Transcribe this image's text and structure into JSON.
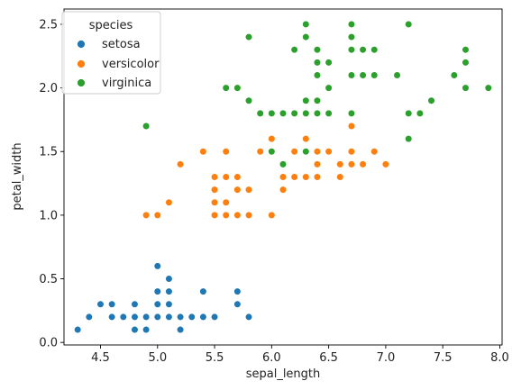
{
  "chart_data": {
    "type": "scatter",
    "title": "",
    "xlabel": "sepal_length",
    "ylabel": "petal_width",
    "xlim": [
      4.18,
      8.02
    ],
    "ylim": [
      -0.02,
      2.62
    ],
    "xticks": [
      4.5,
      5.0,
      5.5,
      6.0,
      6.5,
      7.0,
      7.5,
      8.0
    ],
    "xtick_labels": [
      "4.5",
      "5.0",
      "5.5",
      "6.0",
      "6.5",
      "7.0",
      "7.5",
      "8.0"
    ],
    "yticks": [
      0.0,
      0.5,
      1.0,
      1.5,
      2.0,
      2.5
    ],
    "ytick_labels": [
      "0.0",
      "0.5",
      "1.0",
      "1.5",
      "2.0",
      "2.5"
    ],
    "grid": false,
    "legend": {
      "title": "species",
      "placement": "upper-left"
    },
    "series": [
      {
        "name": "setosa",
        "color": "#1f77b4",
        "points": [
          [
            4.3,
            0.1
          ],
          [
            4.4,
            0.2
          ],
          [
            4.5,
            0.3
          ],
          [
            4.6,
            0.2
          ],
          [
            4.6,
            0.3
          ],
          [
            4.7,
            0.2
          ],
          [
            4.8,
            0.1
          ],
          [
            4.8,
            0.2
          ],
          [
            4.8,
            0.3
          ],
          [
            4.9,
            0.1
          ],
          [
            4.9,
            0.2
          ],
          [
            5.0,
            0.2
          ],
          [
            5.0,
            0.3
          ],
          [
            5.0,
            0.4
          ],
          [
            5.0,
            0.6
          ],
          [
            5.1,
            0.2
          ],
          [
            5.1,
            0.3
          ],
          [
            5.1,
            0.4
          ],
          [
            5.1,
            0.5
          ],
          [
            5.2,
            0.1
          ],
          [
            5.2,
            0.2
          ],
          [
            5.3,
            0.2
          ],
          [
            5.4,
            0.2
          ],
          [
            5.4,
            0.4
          ],
          [
            5.5,
            0.2
          ],
          [
            5.7,
            0.3
          ],
          [
            5.7,
            0.4
          ],
          [
            5.8,
            0.2
          ]
        ]
      },
      {
        "name": "versicolor",
        "color": "#ff7f0e",
        "points": [
          [
            4.9,
            1.0
          ],
          [
            5.0,
            1.0
          ],
          [
            5.1,
            1.1
          ],
          [
            5.2,
            1.4
          ],
          [
            5.4,
            1.5
          ],
          [
            5.5,
            1.0
          ],
          [
            5.5,
            1.1
          ],
          [
            5.5,
            1.2
          ],
          [
            5.5,
            1.3
          ],
          [
            5.6,
            1.0
          ],
          [
            5.6,
            1.1
          ],
          [
            5.6,
            1.3
          ],
          [
            5.6,
            1.5
          ],
          [
            5.7,
            1.0
          ],
          [
            5.7,
            1.2
          ],
          [
            5.7,
            1.3
          ],
          [
            5.8,
            1.0
          ],
          [
            5.8,
            1.2
          ],
          [
            5.9,
            1.5
          ],
          [
            6.0,
            1.0
          ],
          [
            6.0,
            1.5
          ],
          [
            6.0,
            1.6
          ],
          [
            6.1,
            1.2
          ],
          [
            6.1,
            1.3
          ],
          [
            6.1,
            1.4
          ],
          [
            6.2,
            1.3
          ],
          [
            6.2,
            1.5
          ],
          [
            6.3,
            1.3
          ],
          [
            6.3,
            1.5
          ],
          [
            6.3,
            1.6
          ],
          [
            6.4,
            1.3
          ],
          [
            6.4,
            1.4
          ],
          [
            6.4,
            1.5
          ],
          [
            6.5,
            1.5
          ],
          [
            6.6,
            1.3
          ],
          [
            6.6,
            1.4
          ],
          [
            6.7,
            1.4
          ],
          [
            6.7,
            1.5
          ],
          [
            6.7,
            1.7
          ],
          [
            6.8,
            1.4
          ],
          [
            6.9,
            1.5
          ],
          [
            7.0,
            1.4
          ]
        ]
      },
      {
        "name": "virginica",
        "color": "#2ca02c",
        "points": [
          [
            4.9,
            1.7
          ],
          [
            5.6,
            2.0
          ],
          [
            5.7,
            2.0
          ],
          [
            5.8,
            1.9
          ],
          [
            5.8,
            2.4
          ],
          [
            5.9,
            1.8
          ],
          [
            6.0,
            1.5
          ],
          [
            6.0,
            1.8
          ],
          [
            6.1,
            1.4
          ],
          [
            6.1,
            1.8
          ],
          [
            6.2,
            1.8
          ],
          [
            6.2,
            2.3
          ],
          [
            6.3,
            1.5
          ],
          [
            6.3,
            1.8
          ],
          [
            6.3,
            1.9
          ],
          [
            6.3,
            2.4
          ],
          [
            6.3,
            2.5
          ],
          [
            6.4,
            1.8
          ],
          [
            6.4,
            1.9
          ],
          [
            6.4,
            2.1
          ],
          [
            6.4,
            2.2
          ],
          [
            6.4,
            2.3
          ],
          [
            6.5,
            1.8
          ],
          [
            6.5,
            2.0
          ],
          [
            6.5,
            2.2
          ],
          [
            6.7,
            1.8
          ],
          [
            6.7,
            2.1
          ],
          [
            6.7,
            2.3
          ],
          [
            6.7,
            2.4
          ],
          [
            6.7,
            2.5
          ],
          [
            6.8,
            2.1
          ],
          [
            6.8,
            2.3
          ],
          [
            6.9,
            2.1
          ],
          [
            6.9,
            2.3
          ],
          [
            7.1,
            2.1
          ],
          [
            7.2,
            1.6
          ],
          [
            7.2,
            1.8
          ],
          [
            7.2,
            2.5
          ],
          [
            7.3,
            1.8
          ],
          [
            7.4,
            1.9
          ],
          [
            7.6,
            2.1
          ],
          [
            7.7,
            2.0
          ],
          [
            7.7,
            2.2
          ],
          [
            7.7,
            2.3
          ],
          [
            7.9,
            2.0
          ]
        ]
      }
    ]
  }
}
